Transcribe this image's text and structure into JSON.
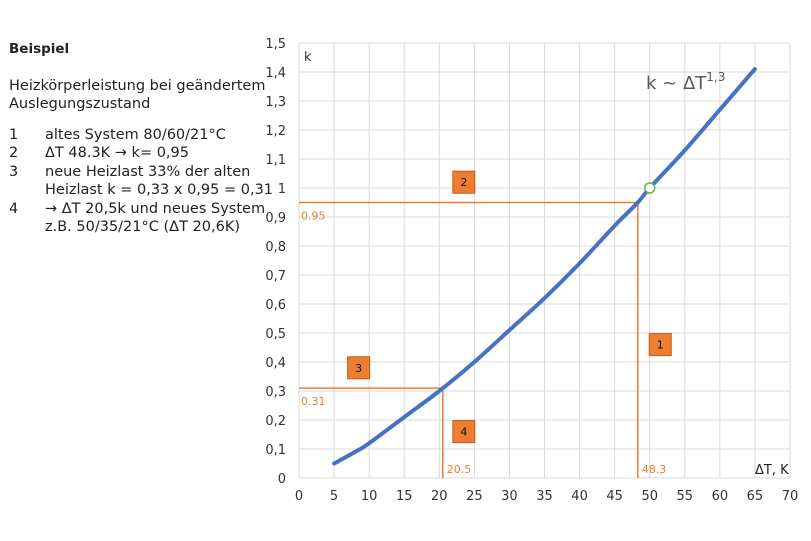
{
  "panel": {
    "heading": "Beispiel",
    "description_line1": "Heizkörperleistung bei geändertem",
    "description_line2": "Auslegungszustand",
    "steps": [
      {
        "num": "1",
        "line1": "altes System 80/60/21°C",
        "line2": ""
      },
      {
        "num": "2",
        "line1": "ΔT 48.3K → k= 0,95",
        "line2": ""
      },
      {
        "num": "3",
        "line1": "neue Heizlast 33% der alten",
        "line2": "Heizlast k = 0,33 x 0,95 = 0,31"
      },
      {
        "num": "4",
        "line1": "→ ΔT 20,5k und neues System",
        "line2": "z.B. 50/35/21°C (ΔT 20,6K)"
      }
    ]
  },
  "chart_data": {
    "type": "line",
    "xlabel": "ΔT, K",
    "ylabel": "k",
    "xlim": [
      0,
      70
    ],
    "ylim": [
      0,
      1.5
    ],
    "x_ticks": [
      "0",
      "5",
      "10",
      "15",
      "20",
      "25",
      "30",
      "35",
      "40",
      "45",
      "50",
      "55",
      "60",
      "65",
      "70"
    ],
    "y_ticks": [
      "0",
      "0,1",
      "0,2",
      "0,3",
      "0,4",
      "0,5",
      "0,6",
      "0,7",
      "0,8",
      "0,9",
      "1",
      "1,1",
      "1,2",
      "1,3",
      "1,4",
      "1,5"
    ],
    "grid": true,
    "formula_label": "k ~ ΔT",
    "formula_exponent": "1,3",
    "series": [
      {
        "color": "#4472C4",
        "x": [
          5,
          8,
          10,
          15,
          20,
          25,
          30,
          35,
          40,
          45,
          48.3,
          50,
          55,
          60,
          65
        ],
        "y": [
          0.05,
          0.09,
          0.12,
          0.21,
          0.3,
          0.4,
          0.51,
          0.62,
          0.74,
          0.87,
          0.95,
          1.0,
          1.13,
          1.27,
          1.41
        ]
      }
    ],
    "marker_point": {
      "x": 50,
      "y": 1.0
    },
    "annotations": {
      "color": "#ED7D31",
      "hline_095": {
        "value": 0.95,
        "label": "0.95",
        "x_end": 48.3
      },
      "vline_483": {
        "value": 48.3,
        "label": "48.3",
        "y_end": 0.95
      },
      "hline_031": {
        "value": 0.31,
        "label": "0.31",
        "x_end": 20.5
      },
      "vline_205": {
        "value": 20.5,
        "label": "20.5",
        "y_end": 0.31
      },
      "badges": [
        {
          "label": "1",
          "x": 51.5,
          "y": 0.46
        },
        {
          "label": "2",
          "x": 23.5,
          "y": 1.02
        },
        {
          "label": "3",
          "x": 8.5,
          "y": 0.38
        },
        {
          "label": "4",
          "x": 23.5,
          "y": 0.16
        }
      ]
    }
  }
}
